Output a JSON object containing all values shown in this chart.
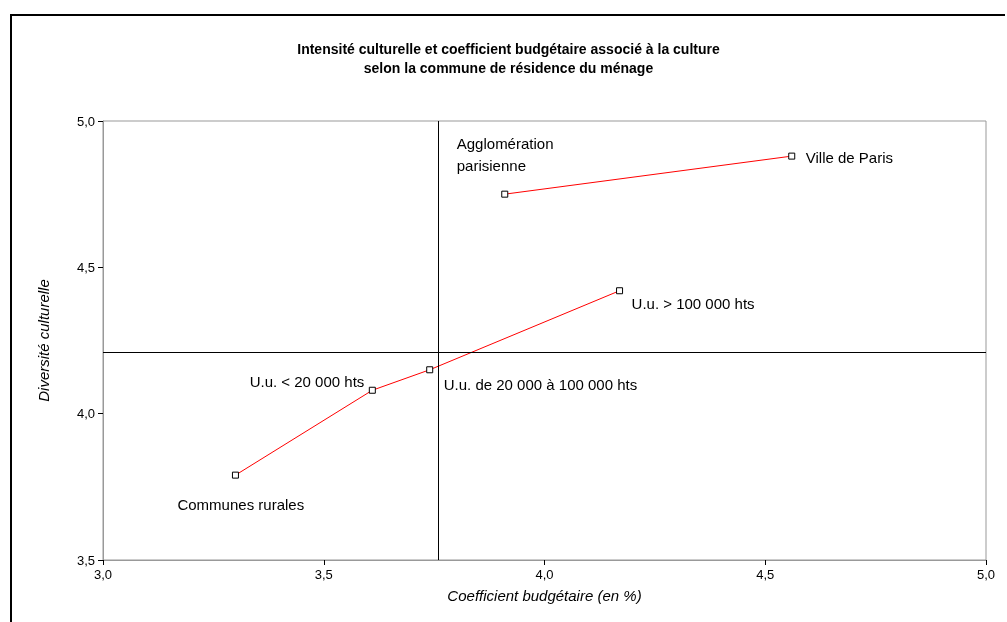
{
  "chart_data": {
    "type": "line",
    "title": "Intensité culturelle et coefficient budgétaire associé à la culture\nselon la commune de résidence du ménage",
    "xlabel": "Coefficient budgétaire (en %)",
    "ylabel": "Diversité culturelle",
    "series": [
      {
        "color": "#ff0000",
        "x": [
          3.3,
          3.61,
          3.74,
          4.17
        ],
        "values": [
          3.79,
          4.08,
          4.15,
          4.42
        ]
      },
      {
        "color": "#ff0000",
        "x": [
          3.91,
          4.56
        ],
        "values": [
          4.75,
          4.88
        ]
      }
    ],
    "marker": "square",
    "grid": false,
    "xlim": [
      3,
      5
    ],
    "xticks": [
      {
        "value": 3,
        "label": "3,0"
      },
      {
        "value": 3.5,
        "label": "3,5"
      },
      {
        "value": 4,
        "label": "4,0"
      },
      {
        "value": 4.5,
        "label": "4,5"
      },
      {
        "value": 5,
        "label": "5,0"
      }
    ],
    "ylim": [
      3.5,
      5
    ],
    "yticks": [
      {
        "value": 3.5,
        "label": "3,5"
      },
      {
        "value": 4,
        "label": "4,0"
      },
      {
        "value": 4.5,
        "label": "4,5"
      },
      {
        "value": 5,
        "label": "5,0"
      }
    ],
    "ref_lines": [
      {
        "axis": "x",
        "value": 3.76,
        "color": "#000000"
      },
      {
        "axis": "y",
        "value": 4.21,
        "color": "#000000"
      }
    ],
    "annotations": [
      {
        "text": "Communes rurales",
        "x": 3.3,
        "y": 3.79
      },
      {
        "text": "U.u. < 20 000 hts",
        "x": 3.61,
        "y": 4.08
      },
      {
        "text": "U.u. de 20 000 à 100 000 hts",
        "x": 3.74,
        "y": 4.15
      },
      {
        "text": "U.u. > 100 000 hts",
        "x": 4.17,
        "y": 4.42
      },
      {
        "text": "Agglomération\nparisienne",
        "x": 3.91,
        "y": 4.75
      },
      {
        "text": "Ville de Paris",
        "x": 4.56,
        "y": 4.88
      }
    ]
  }
}
